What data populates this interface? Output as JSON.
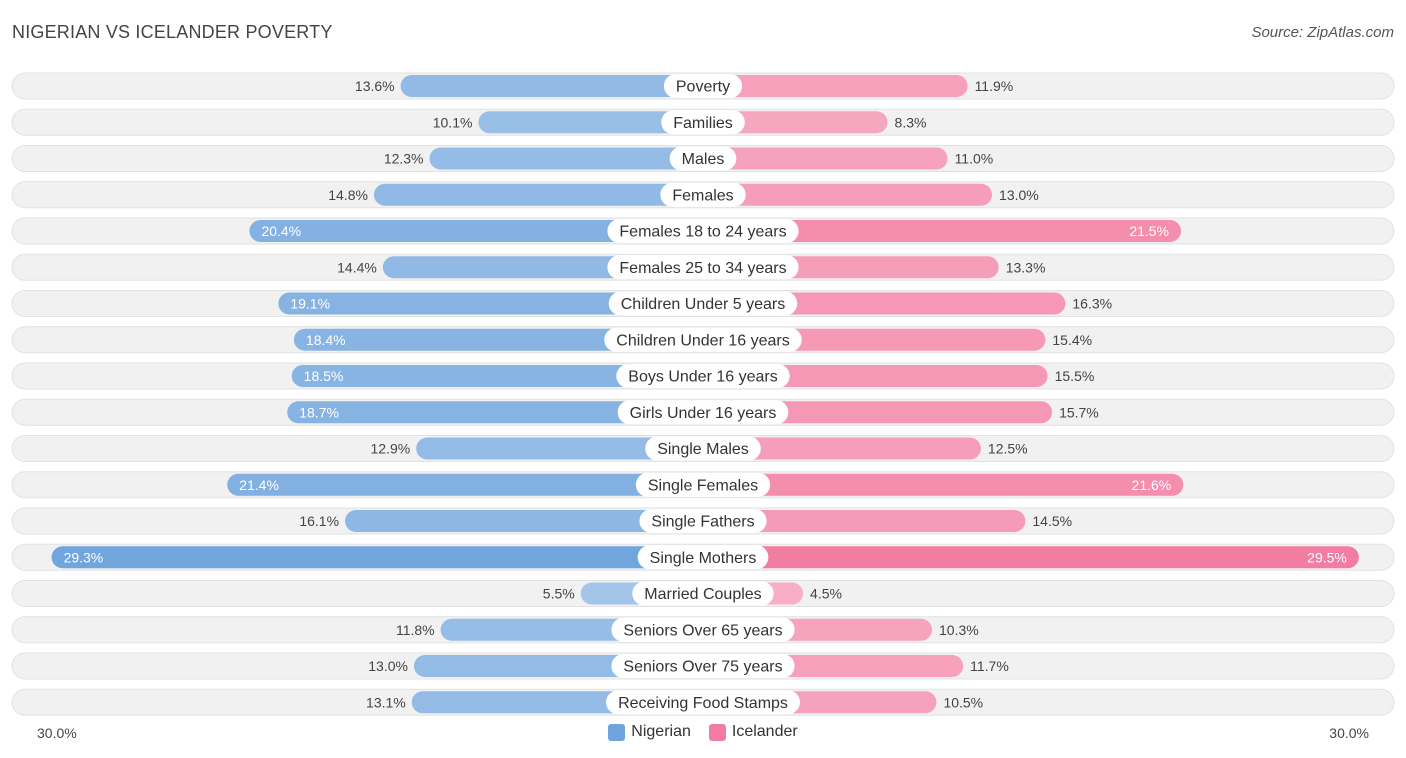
{
  "header": {
    "title": "NIGERIAN VS ICELANDER POVERTY",
    "source": "Source: ZipAtlas.com"
  },
  "colors": {
    "nigerian": "#6fa4dd",
    "icelander": "#f27ca2",
    "row_bg": "#f0f0f0"
  },
  "legend": [
    {
      "name": "Nigerian",
      "color": "#6fa4dd"
    },
    {
      "name": "Icelander",
      "color": "#f27ca2"
    }
  ],
  "axis": {
    "left_label": "30.0%",
    "right_label": "30.0%"
  },
  "chart_data": {
    "type": "bar",
    "orientation": "horizontal-diverging",
    "title": "NIGERIAN VS ICELANDER POVERTY",
    "unit": "%",
    "xlim": [
      0,
      30
    ],
    "categories": [
      "Poverty",
      "Families",
      "Males",
      "Females",
      "Females 18 to 24 years",
      "Females 25 to 34 years",
      "Children Under 5 years",
      "Children Under 16 years",
      "Boys Under 16 years",
      "Girls Under 16 years",
      "Single Males",
      "Single Females",
      "Single Fathers",
      "Single Mothers",
      "Married Couples",
      "Seniors Over 65 years",
      "Seniors Over 75 years",
      "Receiving Food Stamps"
    ],
    "series": [
      {
        "name": "Nigerian",
        "side": "left",
        "values": [
          13.6,
          10.1,
          12.3,
          14.8,
          20.4,
          14.4,
          19.1,
          18.4,
          18.5,
          18.7,
          12.9,
          21.4,
          16.1,
          29.3,
          5.5,
          11.8,
          13.0,
          13.1
        ],
        "labels": [
          "13.6%",
          "10.1%",
          "12.3%",
          "14.8%",
          "20.4%",
          "14.4%",
          "19.1%",
          "18.4%",
          "18.5%",
          "18.7%",
          "12.9%",
          "21.4%",
          "16.1%",
          "29.3%",
          "5.5%",
          "11.8%",
          "13.0%",
          "13.1%"
        ]
      },
      {
        "name": "Icelander",
        "side": "right",
        "values": [
          11.9,
          8.3,
          11.0,
          13.0,
          21.5,
          13.3,
          16.3,
          15.4,
          15.5,
          15.7,
          12.5,
          21.6,
          14.5,
          29.5,
          4.5,
          10.3,
          11.7,
          10.5
        ],
        "labels": [
          "11.9%",
          "8.3%",
          "11.0%",
          "13.0%",
          "21.5%",
          "13.3%",
          "16.3%",
          "15.4%",
          "15.5%",
          "15.7%",
          "12.5%",
          "21.6%",
          "14.5%",
          "29.5%",
          "4.5%",
          "10.3%",
          "11.7%",
          "10.5%"
        ]
      }
    ]
  }
}
